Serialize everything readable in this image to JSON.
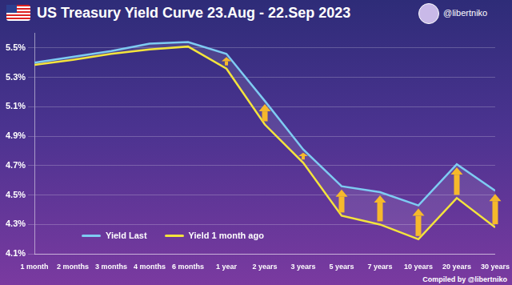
{
  "chart_data": {
    "type": "line",
    "title": "US Treasury Yield Curve 23.Aug - 22.Sep 2023",
    "annotations": [
      "@libertniko",
      "Compiled by @libertniko"
    ],
    "categories": [
      "1 month",
      "2 months",
      "3 months",
      "4 months",
      "6 months",
      "1 year",
      "2 years",
      "3 years",
      "5 years",
      "7 years",
      "10 years",
      "20 years",
      "30 years"
    ],
    "series": [
      {
        "name": "Yield Last",
        "color": "#7ecbf2",
        "values": [
          5.4,
          5.44,
          5.48,
          5.53,
          5.54,
          5.46,
          5.14,
          4.81,
          4.56,
          4.52,
          4.43,
          4.71,
          4.53
        ]
      },
      {
        "name": "Yield 1 month ago",
        "color": "#f4e43c",
        "values": [
          5.385,
          5.42,
          5.46,
          5.49,
          5.51,
          5.36,
          4.98,
          4.72,
          4.36,
          4.3,
          4.2,
          4.48,
          4.28
        ]
      }
    ],
    "ylim": [
      4.1,
      5.6
    ],
    "yticks": [
      {
        "value": 4.1,
        "label": "4.1%"
      },
      {
        "value": 4.3,
        "label": "4.3%"
      },
      {
        "value": 4.5,
        "label": "4.5%"
      },
      {
        "value": 4.7,
        "label": "4.7%"
      },
      {
        "value": 4.9,
        "label": "4.9%"
      },
      {
        "value": 5.1,
        "label": "5.1%"
      },
      {
        "value": 5.3,
        "label": "5.3%"
      },
      {
        "value": 5.5,
        "label": "5.5%"
      }
    ],
    "grid": true,
    "legend": "bottom-left"
  }
}
